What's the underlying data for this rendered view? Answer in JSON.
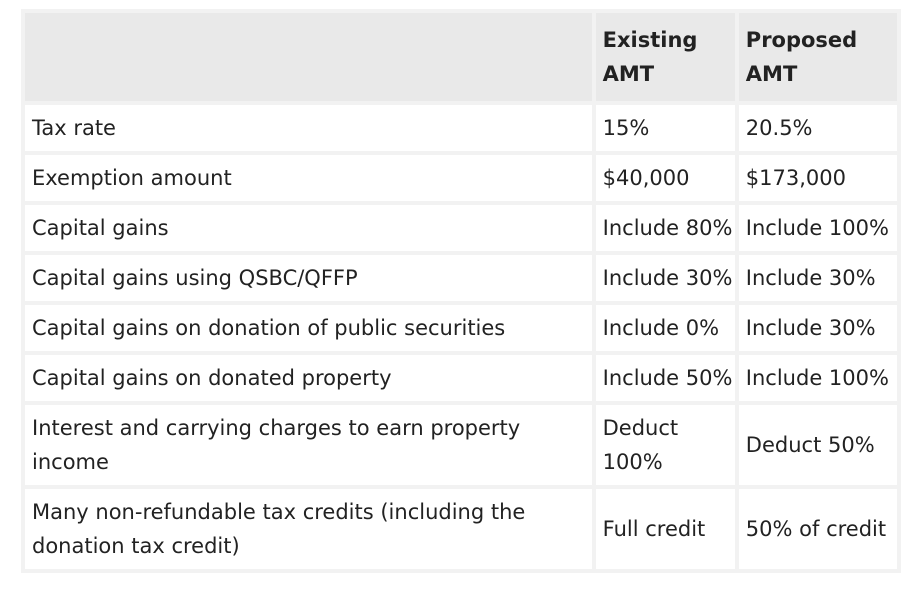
{
  "table": {
    "headers": [
      "",
      "Existing AMT",
      "Proposed AMT"
    ],
    "rows": [
      [
        "Tax rate",
        "15%",
        "20.5%"
      ],
      [
        "Exemption amount",
        "$40,000",
        "$173,000"
      ],
      [
        "Capital gains",
        "Include 80%",
        "Include 100%"
      ],
      [
        "Capital gains using QSBC/QFFP",
        "Include 30%",
        "Include 30%"
      ],
      [
        "Capital gains on donation of public securities",
        "Include 0%",
        "Include 30%"
      ],
      [
        "Capital gains on donated property",
        "Include 50%",
        "Include 100%"
      ],
      [
        "Interest and carrying charges to earn property income",
        "Deduct 100%",
        "Deduct 50%"
      ],
      [
        "Many non-refundable tax credits (including the donation tax credit)",
        "Full credit",
        "50% of credit"
      ]
    ]
  }
}
